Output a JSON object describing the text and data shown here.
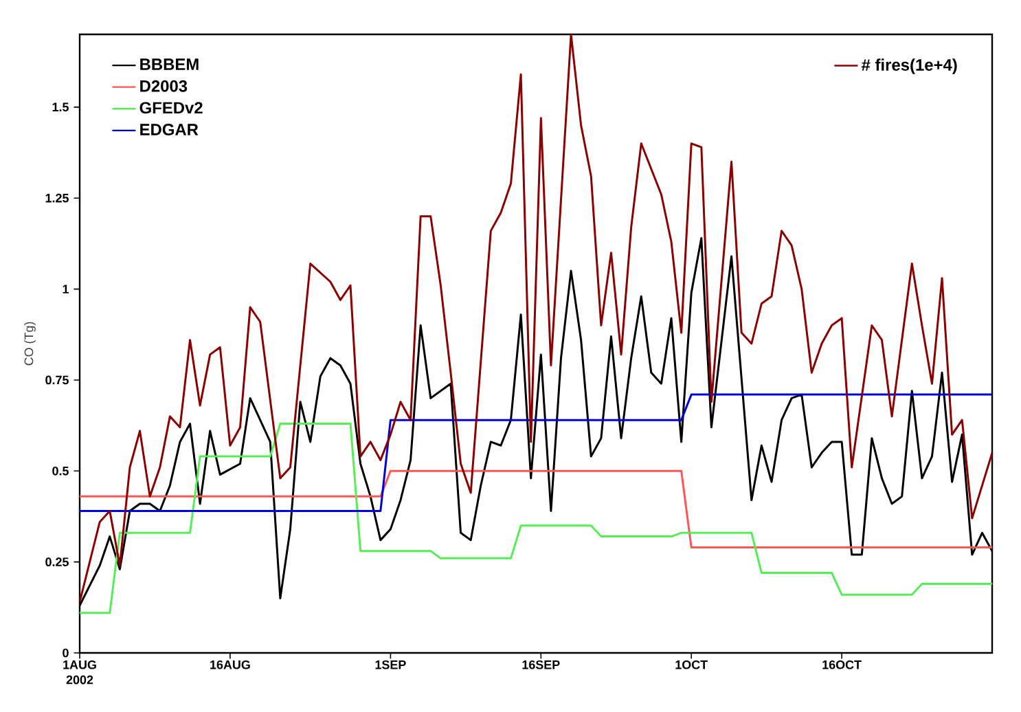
{
  "chart_data": {
    "type": "line",
    "ylabel": "CO (Tg)",
    "xlim": [
      "2002-08-01",
      "2002-10-31"
    ],
    "ylim": [
      0,
      1.7
    ],
    "xticks": [
      {
        "value": "2002-08-01",
        "label": "1AUG 2002"
      },
      {
        "value": "2002-08-16",
        "label": "16AUG"
      },
      {
        "value": "2002-09-01",
        "label": "1SEP"
      },
      {
        "value": "2002-09-16",
        "label": "16SEP"
      },
      {
        "value": "2002-10-01",
        "label": "1OCT"
      },
      {
        "value": "2002-10-16",
        "label": "16OCT"
      }
    ],
    "yticks": [
      0,
      0.25,
      0.5,
      0.75,
      1,
      1.25,
      1.5
    ],
    "legend": "top",
    "series": [
      {
        "name": "BBBEM",
        "color": "#000000",
        "x": [
          "2002-08-01",
          "2002-08-03",
          "2002-08-04",
          "2002-08-05",
          "2002-08-06",
          "2002-08-07",
          "2002-08-08",
          "2002-08-09",
          "2002-08-10",
          "2002-08-11",
          "2002-08-12",
          "2002-08-13",
          "2002-08-14",
          "2002-08-15",
          "2002-08-17",
          "2002-08-18",
          "2002-08-20",
          "2002-08-21",
          "2002-08-22",
          "2002-08-23",
          "2002-08-24",
          "2002-08-25",
          "2002-08-26",
          "2002-08-27",
          "2002-08-28",
          "2002-08-29",
          "2002-08-30",
          "2002-08-31",
          "2002-09-01",
          "2002-09-02",
          "2002-09-03",
          "2002-09-04",
          "2002-09-05",
          "2002-09-06",
          "2002-09-07",
          "2002-09-08",
          "2002-09-09",
          "2002-09-10",
          "2002-09-11",
          "2002-09-12",
          "2002-09-13",
          "2002-09-14",
          "2002-09-15",
          "2002-09-16",
          "2002-09-17",
          "2002-09-18",
          "2002-09-19",
          "2002-09-20",
          "2002-09-21",
          "2002-09-22",
          "2002-09-23",
          "2002-09-24",
          "2002-09-25",
          "2002-09-26",
          "2002-09-27",
          "2002-09-28",
          "2002-09-29",
          "2002-09-30",
          "2002-10-01",
          "2002-10-02",
          "2002-10-03",
          "2002-10-05",
          "2002-10-07",
          "2002-10-08",
          "2002-10-09",
          "2002-10-10",
          "2002-10-11",
          "2002-10-12",
          "2002-10-13",
          "2002-10-14",
          "2002-10-15",
          "2002-10-16",
          "2002-10-17",
          "2002-10-18",
          "2002-10-19",
          "2002-10-20",
          "2002-10-21",
          "2002-10-22",
          "2002-10-23",
          "2002-10-24",
          "2002-10-25",
          "2002-10-26",
          "2002-10-27",
          "2002-10-28",
          "2002-10-29",
          "2002-10-30",
          "2002-10-31"
        ],
        "values": [
          0.13,
          0.24,
          0.32,
          0.23,
          0.39,
          0.41,
          0.41,
          0.39,
          0.46,
          0.58,
          0.63,
          0.41,
          0.61,
          0.49,
          0.52,
          0.7,
          0.58,
          0.15,
          0.34,
          0.69,
          0.58,
          0.76,
          0.81,
          0.79,
          0.74,
          0.52,
          0.43,
          0.31,
          0.34,
          0.42,
          0.53,
          0.9,
          0.7,
          0.72,
          0.74,
          0.33,
          0.31,
          0.46,
          0.58,
          0.57,
          0.64,
          0.93,
          0.48,
          0.82,
          0.39,
          0.81,
          1.05,
          0.86,
          0.54,
          0.59,
          0.87,
          0.59,
          0.81,
          0.98,
          0.77,
          0.74,
          0.92,
          0.58,
          0.99,
          1.14,
          0.62,
          1.09,
          0.42,
          0.57,
          0.47,
          0.64,
          0.7,
          0.71,
          0.51,
          0.55,
          0.58,
          0.58,
          0.27,
          0.27,
          0.59,
          0.48,
          0.41,
          0.43,
          0.72,
          0.48,
          0.54,
          0.77,
          0.47,
          0.6,
          0.27,
          0.33,
          0.28
        ]
      },
      {
        "name": "D2003",
        "color": "#ff5555",
        "x": [
          "2002-08-01",
          "2002-08-31",
          "2002-09-01",
          "2002-09-30",
          "2002-10-01",
          "2002-10-31"
        ],
        "values": [
          0.43,
          0.43,
          0.5,
          0.5,
          0.29,
          0.29
        ]
      },
      {
        "name": "GFEDv2",
        "color": "#55ee55",
        "x": [
          "2002-08-01",
          "2002-08-04",
          "2002-08-05",
          "2002-08-12",
          "2002-08-13",
          "2002-08-20",
          "2002-08-21",
          "2002-08-28",
          "2002-08-29",
          "2002-09-05",
          "2002-09-06",
          "2002-09-13",
          "2002-09-14",
          "2002-09-21",
          "2002-09-22",
          "2002-09-29",
          "2002-09-30",
          "2002-10-07",
          "2002-10-08",
          "2002-10-15",
          "2002-10-16",
          "2002-10-23",
          "2002-10-24",
          "2002-10-31"
        ],
        "values": [
          0.11,
          0.11,
          0.33,
          0.33,
          0.54,
          0.54,
          0.63,
          0.63,
          0.28,
          0.28,
          0.26,
          0.26,
          0.35,
          0.35,
          0.32,
          0.32,
          0.33,
          0.33,
          0.22,
          0.22,
          0.16,
          0.16,
          0.19,
          0.19
        ]
      },
      {
        "name": "EDGAR",
        "color": "#0000dd",
        "x": [
          "2002-08-01",
          "2002-08-31",
          "2002-09-01",
          "2002-09-30",
          "2002-10-01",
          "2002-10-31"
        ],
        "values": [
          0.39,
          0.39,
          0.64,
          0.64,
          0.71,
          0.71
        ]
      },
      {
        "name": "# fires(1e+4)",
        "color": "#8b0000",
        "x": [
          "2002-08-01",
          "2002-08-03",
          "2002-08-04",
          "2002-08-05",
          "2002-08-06",
          "2002-08-07",
          "2002-08-08",
          "2002-08-09",
          "2002-08-10",
          "2002-08-11",
          "2002-08-12",
          "2002-08-13",
          "2002-08-14",
          "2002-08-15",
          "2002-08-16",
          "2002-08-17",
          "2002-08-18",
          "2002-08-19",
          "2002-08-21",
          "2002-08-22",
          "2002-08-24",
          "2002-08-26",
          "2002-08-27",
          "2002-08-28",
          "2002-08-29",
          "2002-08-30",
          "2002-08-31",
          "2002-09-01",
          "2002-09-02",
          "2002-09-03",
          "2002-09-04",
          "2002-09-05",
          "2002-09-06",
          "2002-09-07",
          "2002-09-08",
          "2002-09-09",
          "2002-09-11",
          "2002-09-12",
          "2002-09-13",
          "2002-09-14",
          "2002-09-15",
          "2002-09-16",
          "2002-09-17",
          "2002-09-19",
          "2002-09-20",
          "2002-09-21",
          "2002-09-22",
          "2002-09-23",
          "2002-09-24",
          "2002-09-25",
          "2002-09-26",
          "2002-09-28",
          "2002-09-29",
          "2002-09-30",
          "2002-10-01",
          "2002-10-02",
          "2002-10-03",
          "2002-10-05",
          "2002-10-06",
          "2002-10-07",
          "2002-10-08",
          "2002-10-09",
          "2002-10-10",
          "2002-10-11",
          "2002-10-12",
          "2002-10-13",
          "2002-10-14",
          "2002-10-15",
          "2002-10-16",
          "2002-10-17",
          "2002-10-19",
          "2002-10-20",
          "2002-10-21",
          "2002-10-23",
          "2002-10-24",
          "2002-10-25",
          "2002-10-26",
          "2002-10-27",
          "2002-10-28",
          "2002-10-29",
          "2002-10-31"
        ],
        "values": [
          0.14,
          0.36,
          0.39,
          0.24,
          0.51,
          0.61,
          0.43,
          0.51,
          0.65,
          0.62,
          0.86,
          0.68,
          0.82,
          0.84,
          0.57,
          0.62,
          0.95,
          0.91,
          0.48,
          0.51,
          1.07,
          1.02,
          0.97,
          1.01,
          0.54,
          0.58,
          0.53,
          0.6,
          0.69,
          0.64,
          1.2,
          1.2,
          1.01,
          0.77,
          0.52,
          0.44,
          1.16,
          1.21,
          1.29,
          1.59,
          0.58,
          1.47,
          0.79,
          1.7,
          1.45,
          1.31,
          0.9,
          1.1,
          0.82,
          1.17,
          1.4,
          1.26,
          1.13,
          0.88,
          1.4,
          1.39,
          0.69,
          1.35,
          0.88,
          0.85,
          0.96,
          0.98,
          1.16,
          1.12,
          1.0,
          0.77,
          0.85,
          0.9,
          0.92,
          0.51,
          0.9,
          0.86,
          0.65,
          1.07,
          0.9,
          0.74,
          1.03,
          0.6,
          0.64,
          0.37,
          0.55
        ]
      }
    ]
  }
}
